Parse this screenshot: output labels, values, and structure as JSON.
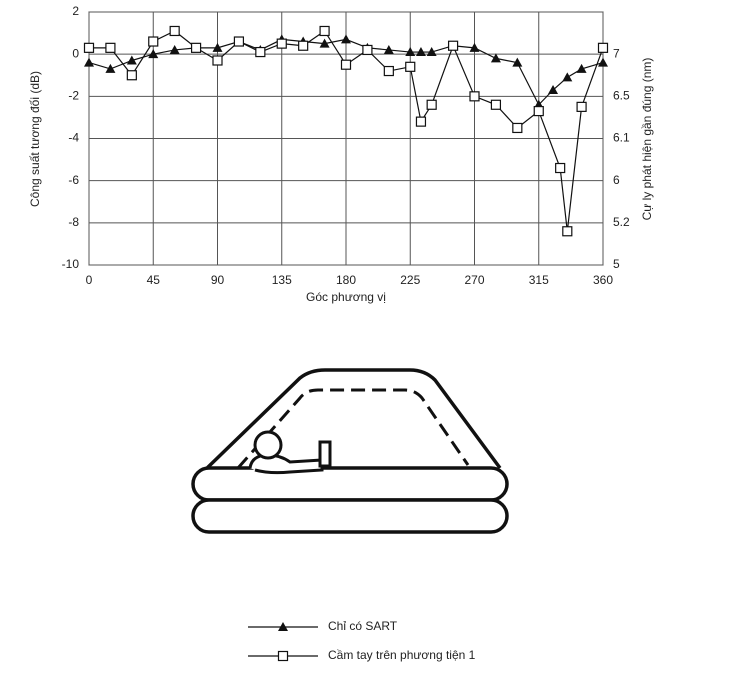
{
  "chart_data": {
    "type": "line",
    "xlabel": "Góc phương vị",
    "ylabel": "Công suất tương đối (dB)",
    "y2label": "Cự ly phát hiện gần đúng (nm)",
    "xlim": [
      0,
      360
    ],
    "xticks": [
      0,
      45,
      90,
      135,
      180,
      225,
      270,
      315,
      360
    ],
    "ylim": [
      -10,
      2
    ],
    "yticks": [
      2,
      0,
      -2,
      -4,
      -6,
      -8,
      -10
    ],
    "y2ticks": [
      7,
      6.5,
      6.1,
      6,
      5.2,
      5
    ],
    "grid": true,
    "series": [
      {
        "name": "Chỉ có SART",
        "color": "#111",
        "marker": "triangle",
        "x": [
          0,
          15,
          30,
          45,
          60,
          75,
          90,
          105,
          120,
          135,
          150,
          165,
          180,
          195,
          210,
          225,
          232.5,
          240,
          255,
          270,
          285,
          300,
          315,
          325,
          335,
          345,
          360
        ],
        "values": [
          -0.4,
          -0.7,
          -0.3,
          0,
          0.2,
          0.3,
          0.3,
          0.6,
          0.2,
          0.7,
          0.6,
          0.5,
          0.7,
          0.3,
          0.2,
          0.1,
          0.1,
          0.1,
          0.4,
          0.3,
          -0.2,
          -0.4,
          -2.4,
          -1.7,
          -1.1,
          -0.7,
          -0.4
        ]
      },
      {
        "name": "Cầm tay trên phương tiện 1",
        "color": "#111",
        "marker": "square",
        "x": [
          0,
          15,
          30,
          45,
          60,
          75,
          90,
          105,
          120,
          135,
          150,
          165,
          180,
          195,
          210,
          225,
          232.5,
          240,
          255,
          270,
          285,
          300,
          315,
          330,
          335,
          345,
          360
        ],
        "values": [
          0.3,
          0.3,
          -1.0,
          0.6,
          1.1,
          0.3,
          -0.3,
          0.6,
          0.1,
          0.5,
          0.4,
          1.1,
          -0.5,
          0.2,
          -0.8,
          -0.6,
          -3.2,
          -2.4,
          0.4,
          -2.0,
          -2.4,
          -3.5,
          -2.7,
          -5.4,
          -8.4,
          -2.5,
          0.3
        ]
      }
    ]
  }
}
